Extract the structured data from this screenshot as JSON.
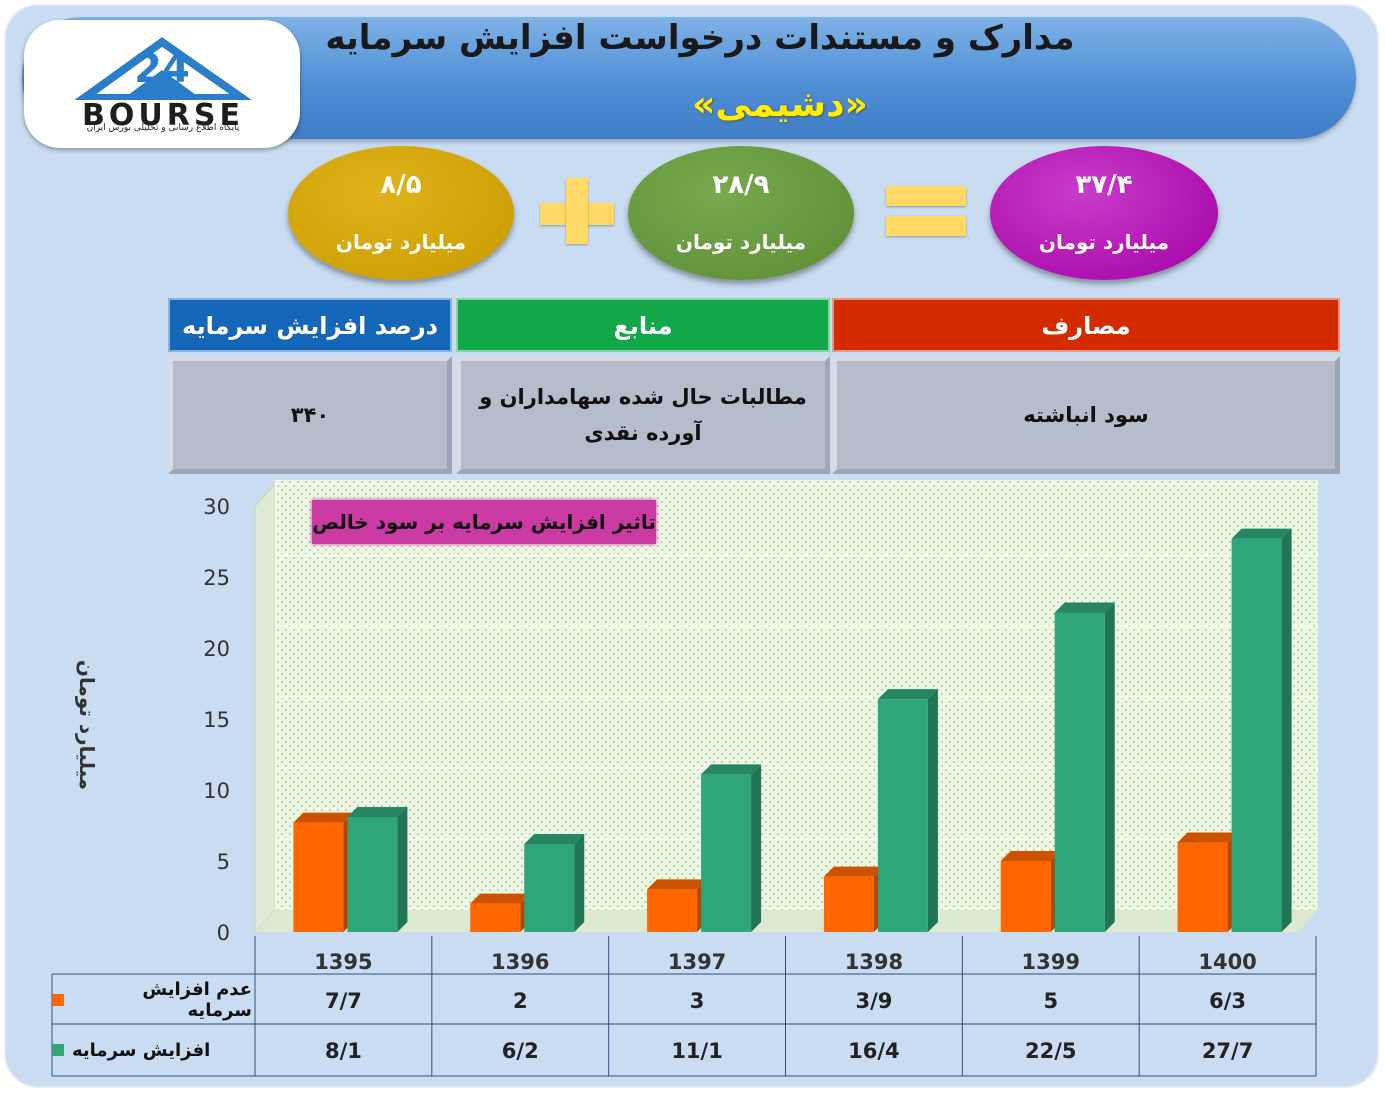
{
  "header": {
    "title": "مدارک و مستندات درخواست افزایش سرمایه",
    "company": "«دشیمی»",
    "logo_text": "BOURSE",
    "logo_caption": "پایگاه اطلاع رسانی و تحلیلی بورس ایران"
  },
  "equation": {
    "total": {
      "value": "۳۷/۴",
      "unit": "میلیارد تومان",
      "color": "#a200a6"
    },
    "part1": {
      "value": "۲۸/۹",
      "unit": "میلیارد تومان",
      "color": "#5a8a33"
    },
    "part2": {
      "value": "۸/۵",
      "unit": "میلیارد تومان",
      "color": "#c79b00"
    }
  },
  "table": {
    "headers": {
      "uses": "مصارف",
      "sources": "منابع",
      "percent": "درصد افزایش سرمایه"
    },
    "values": {
      "uses": "سود انباشته",
      "sources": "مطالبات حال شده سهامداران و آورده نقدی",
      "percent": "۳۴۰"
    },
    "colors": {
      "uses": "#d42a00",
      "sources": "#12a84a",
      "percent": "#1466b8"
    }
  },
  "chart_data": {
    "type": "bar",
    "title": "تاثیر افزایش سرمایه بر سود خالص",
    "ylabel": "میلیارد تومان",
    "ylim": [
      0,
      30
    ],
    "yticks": [
      0,
      5,
      10,
      15,
      20,
      25,
      30
    ],
    "categories": [
      "1395",
      "1396",
      "1397",
      "1398",
      "1399",
      "1400"
    ],
    "series": [
      {
        "name": "عدم افزایش سرمایه",
        "color": "#ff6600",
        "values": [
          7.7,
          2,
          3,
          3.9,
          5,
          6.3
        ],
        "labels": [
          "7/7",
          "2",
          "3",
          "3/9",
          "5",
          "6/3"
        ]
      },
      {
        "name": "افزایش سرمایه",
        "color": "#2fa67a",
        "values": [
          8.1,
          6.2,
          11.1,
          16.4,
          22.5,
          27.7
        ],
        "labels": [
          "8/1",
          "6/2",
          "11/1",
          "16/4",
          "22/5",
          "27/7"
        ]
      }
    ]
  }
}
